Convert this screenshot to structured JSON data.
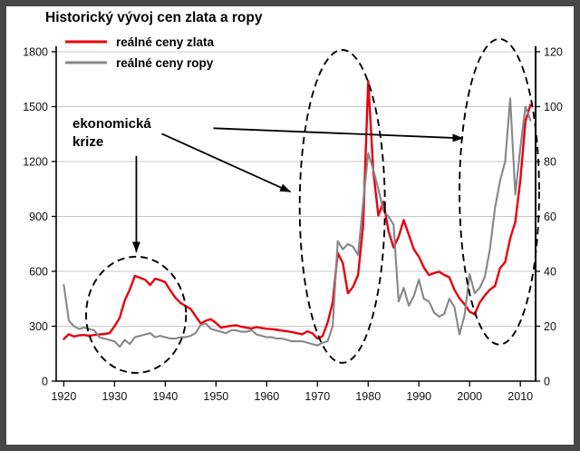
{
  "chart_data": {
    "type": "line",
    "title": "Historický vývoj cen zlata a ropy",
    "legend_position": "top-left",
    "grid": "horizontal-only",
    "x_ticks": [
      1920,
      1930,
      1940,
      1950,
      1960,
      1970,
      1980,
      1990,
      2000,
      2010
    ],
    "x_range": [
      1918.5,
      2013
    ],
    "left_axis": {
      "range": [
        0,
        1800
      ],
      "ticks": [
        0,
        300,
        600,
        900,
        1200,
        1500,
        1800
      ],
      "series": "reálné ceny zlata"
    },
    "right_axis": {
      "range": [
        0,
        120
      ],
      "ticks": [
        0,
        20,
        40,
        60,
        80,
        100,
        120
      ],
      "series": "reálné ceny ropy"
    },
    "years": [
      1920,
      1921,
      1922,
      1923,
      1924,
      1925,
      1926,
      1927,
      1928,
      1929,
      1930,
      1931,
      1932,
      1933,
      1934,
      1935,
      1936,
      1937,
      1938,
      1939,
      1940,
      1941,
      1942,
      1943,
      1944,
      1945,
      1946,
      1947,
      1948,
      1949,
      1950,
      1951,
      1952,
      1953,
      1954,
      1955,
      1956,
      1957,
      1958,
      1959,
      1960,
      1961,
      1962,
      1963,
      1964,
      1965,
      1966,
      1967,
      1968,
      1969,
      1970,
      1971,
      1972,
      1973,
      1974,
      1975,
      1976,
      1977,
      1978,
      1979,
      1980,
      1981,
      1982,
      1983,
      1984,
      1985,
      1986,
      1987,
      1988,
      1989,
      1990,
      1991,
      1992,
      1993,
      1994,
      1995,
      1996,
      1997,
      1998,
      1999,
      2000,
      2001,
      2002,
      2003,
      2004,
      2005,
      2006,
      2007,
      2008,
      2009,
      2010,
      2011,
      2012
    ],
    "series": [
      {
        "name": "reálné ceny zlata",
        "axis": "left",
        "color": "#e8000d",
        "values": [
          230,
          256,
          244,
          250,
          252,
          248,
          252,
          255,
          258,
          262,
          300,
          345,
          440,
          500,
          575,
          565,
          555,
          525,
          560,
          552,
          540,
          495,
          455,
          428,
          410,
          395,
          355,
          315,
          330,
          338,
          318,
          292,
          298,
          302,
          305,
          298,
          292,
          288,
          295,
          290,
          286,
          284,
          280,
          276,
          272,
          268,
          262,
          256,
          272,
          262,
          232,
          246,
          320,
          430,
          700,
          645,
          480,
          515,
          580,
          850,
          1640,
          1150,
          905,
          980,
          820,
          730,
          790,
          880,
          800,
          720,
          680,
          620,
          580,
          590,
          598,
          580,
          568,
          500,
          452,
          420,
          380,
          365,
          430,
          468,
          500,
          520,
          618,
          650,
          780,
          870,
          1100,
          1420,
          1510
        ]
      },
      {
        "name": "reálné ceny ropy",
        "axis": "right",
        "color": "#878787",
        "values": [
          35,
          22,
          20,
          19,
          19.5,
          19,
          18.5,
          16,
          15.5,
          15,
          14.5,
          12.5,
          15,
          13.5,
          16,
          16.5,
          17,
          17.5,
          16,
          16.5,
          16,
          15.5,
          15.5,
          16,
          16,
          16.5,
          17.5,
          20.5,
          21,
          19,
          18.5,
          18,
          17.5,
          18.5,
          18.5,
          18,
          18,
          18.5,
          17,
          16.5,
          16,
          16,
          15.5,
          15.5,
          15,
          14.5,
          14.5,
          14.5,
          14,
          13.5,
          13,
          14,
          14.5,
          20,
          51,
          48,
          50,
          49,
          46,
          65,
          83,
          77,
          70,
          62,
          60,
          57,
          29,
          34,
          27.5,
          31,
          37,
          30,
          29,
          25,
          23.5,
          24.5,
          30,
          27,
          17,
          24,
          39,
          32,
          34,
          38,
          48,
          63,
          73,
          80,
          103,
          68,
          85,
          100,
          95
        ]
      }
    ],
    "annotations": {
      "label_line1": "ekonomická",
      "label_line2": "krize",
      "label_full": "ekonomická krize",
      "crisis_ellipses": [
        {
          "year_min": 1924.4,
          "year_max": 1944.1,
          "value_min": 45,
          "value_max": 680
        },
        {
          "year_min": 1966.5,
          "year_max": 1983.3,
          "value_min": 100,
          "value_max": 1810
        },
        {
          "year_min": 1998.0,
          "year_max": 2013.7,
          "value_min": 200,
          "value_max": 1870
        }
      ],
      "arrows": [
        {
          "from_year": 1934.3,
          "from_value": 1230,
          "to_year": 1934.3,
          "to_value": 705
        },
        {
          "from_year": 1939.3,
          "from_value": 1352,
          "to_year": 1964.7,
          "to_value": 1034
        },
        {
          "from_year": 1949.5,
          "from_value": 1382,
          "to_year": 1998.7,
          "to_value": 1327
        }
      ]
    }
  }
}
